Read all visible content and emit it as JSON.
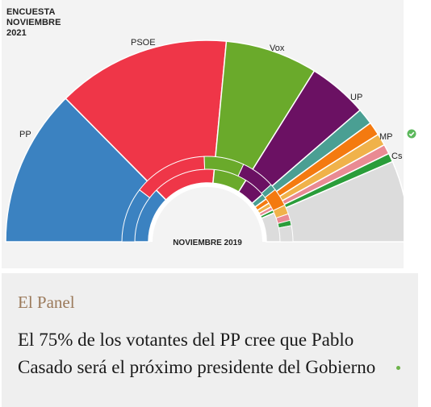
{
  "chart_data": {
    "type": "pie",
    "subtype": "parliament-semicircle",
    "title": "ENCUESTA\nNOVIEMBRE\n2021",
    "inner_label": "NOVIEMBRE 2019",
    "series": [
      {
        "name": "PP",
        "color": "#3b82c1",
        "values_outer": [
          29
        ],
        "values_inner": [
          20.8
        ]
      },
      {
        "name": "PSOE",
        "color": "#ef3648",
        "values_outer": [
          32
        ],
        "values_inner": [
          28.0
        ]
      },
      {
        "name": "Vox",
        "color": "#6aaa2b",
        "values_outer": [
          17
        ],
        "values_inner": [
          15.1
        ]
      },
      {
        "name": "UP",
        "color": "#6b1163",
        "values_outer": [
          11
        ],
        "values_inner": [
          12.8
        ]
      },
      {
        "name": "MP",
        "color": "#4a9f93",
        "values_outer": [
          3
        ],
        "values_inner": [
          2.4
        ]
      },
      {
        "name": "Cs",
        "color": "#f47a10",
        "values_outer": [
          2.5
        ],
        "values_inner": [
          6.8
        ]
      },
      {
        "name": "",
        "color": "#f0b24a",
        "values_outer": [
          2.2
        ],
        "values_inner": [
          3.5
        ]
      },
      {
        "name": "",
        "color": "#e98a93",
        "values_outer": [
          1.8
        ],
        "values_inner": [
          2.5
        ]
      },
      {
        "name": "",
        "color": "#2a9d3a",
        "values_outer": [
          1.6
        ],
        "values_inner": [
          2.0
        ]
      },
      {
        "name": "",
        "color": "#dcdcdc",
        "values_outer": [
          15
        ],
        "values_inner": [
          6.1
        ]
      }
    ]
  },
  "check_icon": "check-circle-icon",
  "panel": {
    "section": "El Panel",
    "headline": "El 75% de los votantes del PP cree que Pablo Casado será el próximo presidente del Gobierno"
  }
}
